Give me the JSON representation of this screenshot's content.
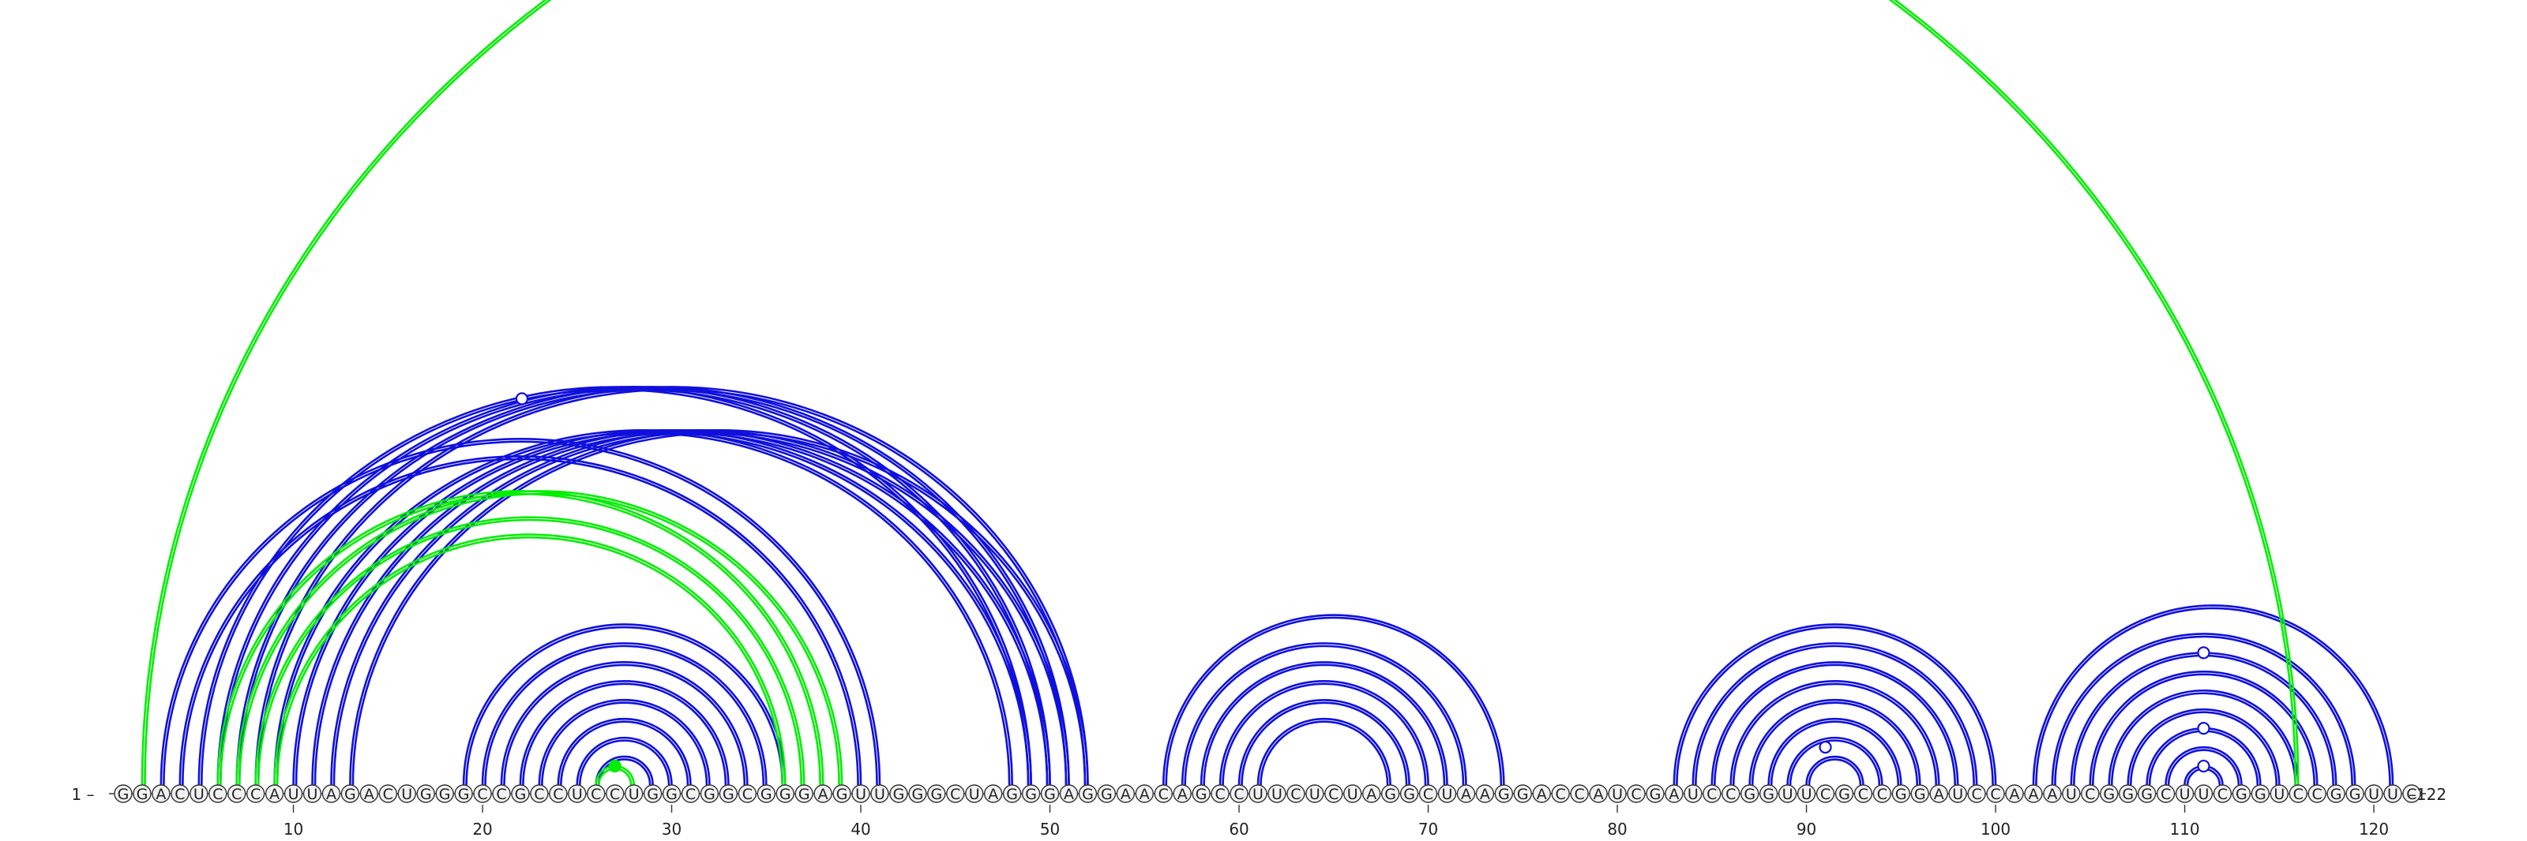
{
  "diagram": {
    "sequence": "GGACUCCCAUUAGACUGGGCCGCCUCCUGGCGGCGGGAGUUGGGCUAGGGAGGAACAGCCUUCUCUAGGCUAAGGACCAUCGAUCCGGUUCGCCGGAUCCAAAUCGGGCUUCGGUCCGGUUC",
    "start_label": "1",
    "end_label": "122",
    "tick_positions": [
      10,
      20,
      30,
      40,
      50,
      60,
      70,
      80,
      90,
      100,
      110,
      120
    ],
    "tick_labels": [
      "10",
      "20",
      "30",
      "40",
      "50",
      "60",
      "70",
      "80",
      "90",
      "100",
      "110",
      "120"
    ],
    "colors": {
      "blue_pairs": "#1010dd",
      "green_pairs": "#00ee00",
      "nucleotide_fill": "#f2f2f2",
      "nucleotide_stroke": "#333333",
      "text": "#222222"
    },
    "blue_pairs": [
      [
        3,
        41
      ],
      [
        4,
        40
      ],
      [
        5,
        49
      ],
      [
        6,
        50
      ],
      [
        7,
        51
      ],
      [
        8,
        52
      ],
      [
        9,
        48
      ],
      [
        10,
        49
      ],
      [
        11,
        50
      ],
      [
        12,
        51
      ],
      [
        13,
        52
      ],
      [
        19,
        36
      ],
      [
        20,
        35
      ],
      [
        21,
        34
      ],
      [
        22,
        33
      ],
      [
        23,
        32
      ],
      [
        24,
        31
      ],
      [
        25,
        30
      ],
      [
        26,
        29
      ],
      [
        56,
        74
      ],
      [
        57,
        72
      ],
      [
        58,
        71
      ],
      [
        59,
        70
      ],
      [
        60,
        69
      ],
      [
        61,
        68
      ],
      [
        83,
        100
      ],
      [
        84,
        99
      ],
      [
        85,
        98
      ],
      [
        86,
        97
      ],
      [
        87,
        96
      ],
      [
        88,
        95
      ],
      [
        89,
        94
      ],
      [
        90,
        93
      ],
      [
        102,
        121
      ],
      [
        103,
        119
      ],
      [
        104,
        118
      ],
      [
        105,
        117
      ],
      [
        106,
        116
      ],
      [
        107,
        115
      ],
      [
        108,
        114
      ],
      [
        109,
        113
      ],
      [
        110,
        112
      ]
    ],
    "green_pairs": [
      [
        2,
        116
      ],
      [
        6,
        38
      ],
      [
        7,
        39
      ],
      [
        8,
        37
      ],
      [
        9,
        36
      ],
      [
        26,
        28
      ]
    ],
    "markers": [
      {
        "a": 5,
        "b": 49,
        "filled": false
      },
      {
        "a": 89,
        "b": 93,
        "filled": false
      },
      {
        "a": 104,
        "b": 118,
        "filled": false
      },
      {
        "a": 108,
        "b": 114,
        "filled": false
      },
      {
        "a": 110,
        "b": 112,
        "filled": false
      },
      {
        "a": 26,
        "b": 28,
        "filled": true
      }
    ]
  }
}
